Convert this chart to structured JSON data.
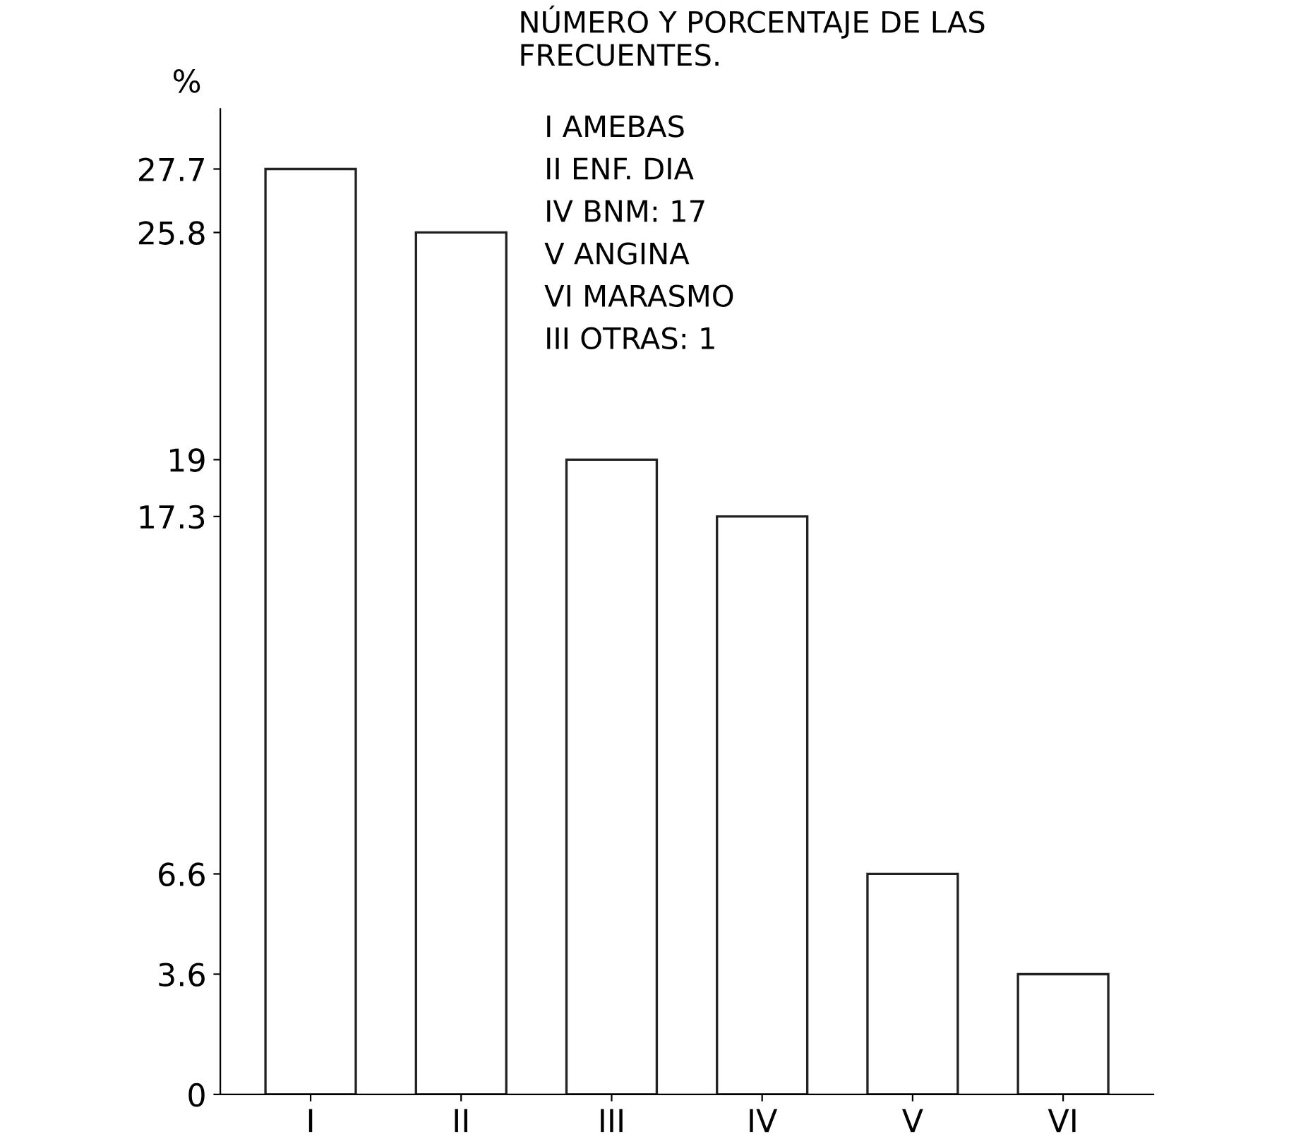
{
  "chart_data": {
    "type": "bar",
    "title": "NÚMERO Y PORCENTAJE DE LAS\nFRECUENTES.",
    "ylabel": "%",
    "categories": [
      "I",
      "II",
      "III",
      "IV",
      "V",
      "VI"
    ],
    "values": [
      27.7,
      25.8,
      19,
      17.3,
      6.6,
      3.6
    ],
    "color": "#ffffff",
    "ylim": [
      0,
      29.5
    ],
    "yticks": [
      0,
      3.6,
      6.6,
      17.3,
      19,
      25.8,
      27.7
    ],
    "grid": false,
    "annotations": [
      "I AMEBAS",
      "II ENF. DIA",
      "IV BNM: 17",
      "V ANGINA",
      "VI MARASMO",
      "III OTRAS: 1"
    ]
  }
}
